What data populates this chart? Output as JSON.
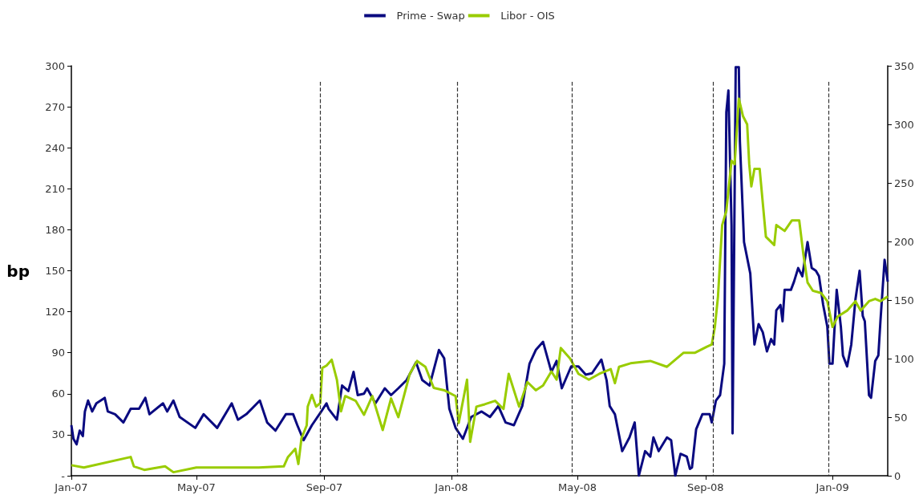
{
  "chart_data": {
    "type": "line",
    "ylabel": "bp",
    "legend": "top",
    "marker": "none",
    "grid": false,
    "xlim": [
      "2007-01-01",
      "2009-02-23"
    ],
    "xticks": [
      {
        "value": "2007-01-01",
        "label": "Jan-07"
      },
      {
        "value": "2007-05-01",
        "label": "May-07"
      },
      {
        "value": "2007-09-01",
        "label": "Sep-07"
      },
      {
        "value": "2008-01-01",
        "label": "Jan-08"
      },
      {
        "value": "2008-05-01",
        "label": "May-08"
      },
      {
        "value": "2008-09-01",
        "label": "Sep-08"
      },
      {
        "value": "2009-01-01",
        "label": "Jan-09"
      }
    ],
    "ylim": [
      0,
      300
    ],
    "yticks": [
      {
        "value": 0,
        "label": "-"
      },
      30,
      60,
      90,
      120,
      150,
      180,
      210,
      240,
      270,
      300
    ],
    "y2lim": [
      0,
      350
    ],
    "y2ticks": [
      0,
      50,
      100,
      150,
      200,
      250,
      300,
      350
    ],
    "ref_lines": [
      {
        "axis": "x",
        "value": "2007-08-28",
        "label": null,
        "color": "#333333",
        "line_style": "dashed"
      },
      {
        "axis": "x",
        "value": "2008-01-07",
        "label": null,
        "color": "#333333",
        "line_style": "dashed"
      },
      {
        "axis": "x",
        "value": "2008-04-26",
        "label": null,
        "color": "#333333",
        "line_style": "dashed"
      },
      {
        "axis": "x",
        "value": "2008-09-08",
        "label": null,
        "color": "#333333",
        "line_style": "dashed"
      },
      {
        "axis": "x",
        "value": "2008-12-28",
        "label": null,
        "color": "#333333",
        "line_style": "dashed"
      }
    ],
    "series": [
      {
        "name": "Prime - Swap",
        "color": "#0a0a80",
        "x": [
          "2007-01-01",
          "2007-01-03",
          "2007-01-06",
          "2007-01-09",
          "2007-01-12",
          "2007-01-14",
          "2007-01-17",
          "2007-01-21",
          "2007-01-25",
          "2007-02-02",
          "2007-02-05",
          "2007-02-12",
          "2007-02-20",
          "2007-02-27",
          "2007-03-07",
          "2007-03-13",
          "2007-03-17",
          "2007-03-30",
          "2007-04-03",
          "2007-04-09",
          "2007-04-15",
          "2007-04-30",
          "2007-05-08",
          "2007-05-21",
          "2007-06-04",
          "2007-06-10",
          "2007-06-18",
          "2007-07-01",
          "2007-07-08",
          "2007-07-16",
          "2007-07-26",
          "2007-08-02",
          "2007-08-06",
          "2007-08-12",
          "2007-08-20",
          "2007-08-29",
          "2007-09-03",
          "2007-09-05",
          "2007-09-13",
          "2007-09-18",
          "2007-09-24",
          "2007-09-29",
          "2007-10-03",
          "2007-10-09",
          "2007-10-12",
          "2007-10-20",
          "2007-10-29",
          "2007-11-04",
          "2007-11-11",
          "2007-11-19",
          "2007-11-28",
          "2007-12-04",
          "2007-12-11",
          "2007-12-20",
          "2007-12-25",
          "2007-12-30",
          "2008-01-05",
          "2008-01-12",
          "2008-01-20",
          "2008-01-30",
          "2008-02-07",
          "2008-02-15",
          "2008-02-22",
          "2008-03-01",
          "2008-03-09",
          "2008-03-16",
          "2008-03-22",
          "2008-03-29",
          "2008-04-06",
          "2008-04-11",
          "2008-04-16",
          "2008-04-25",
          "2008-05-02",
          "2008-05-09",
          "2008-05-15",
          "2008-05-24",
          "2008-05-29",
          "2008-06-01",
          "2008-06-06",
          "2008-06-13",
          "2008-06-20",
          "2008-06-25",
          "2008-06-29",
          "2008-07-05",
          "2008-07-10",
          "2008-07-13",
          "2008-07-18",
          "2008-07-26",
          "2008-07-30",
          "2008-08-03",
          "2008-08-08",
          "2008-08-14",
          "2008-08-17",
          "2008-08-19",
          "2008-08-23",
          "2008-08-29",
          "2008-09-05",
          "2008-09-07",
          "2008-09-11",
          "2008-09-15",
          "2008-09-19",
          "2008-09-21",
          "2008-09-23",
          "2008-09-26",
          "2008-09-27",
          "2008-09-30",
          "2008-10-03",
          "2008-10-04",
          "2008-10-08",
          "2008-10-14",
          "2008-10-18",
          "2008-10-22",
          "2008-10-26",
          "2008-10-30",
          "2008-11-03",
          "2008-11-06",
          "2008-11-08",
          "2008-11-12",
          "2008-11-14",
          "2008-11-16",
          "2008-11-22",
          "2008-11-25",
          "2008-11-29",
          "2008-12-03",
          "2008-12-08",
          "2008-12-12",
          "2008-12-16",
          "2008-12-19",
          "2008-12-23",
          "2008-12-27",
          "2008-12-29",
          "2009-01-01",
          "2009-01-05",
          "2009-01-09",
          "2009-01-11",
          "2009-01-15",
          "2009-01-19",
          "2009-01-23",
          "2009-01-27",
          "2009-01-30",
          "2009-02-01",
          "2009-02-05",
          "2009-02-07",
          "2009-02-11",
          "2009-02-14",
          "2009-02-16",
          "2009-02-20",
          "2009-02-23"
        ],
        "values": [
          37,
          27,
          23,
          33,
          29,
          47,
          55,
          47,
          53,
          57,
          47,
          45,
          39,
          49,
          49,
          57,
          45,
          53,
          47,
          55,
          43,
          35,
          45,
          35,
          53,
          41,
          45,
          55,
          39,
          33,
          45,
          45,
          37,
          26,
          37,
          47,
          53,
          49,
          41,
          66,
          62,
          76,
          59,
          60,
          64,
          53,
          64,
          59,
          64,
          70,
          83,
          70,
          66,
          92,
          86,
          49,
          35,
          27,
          43,
          47,
          43,
          51,
          39,
          37,
          51,
          82,
          92,
          98,
          76,
          84,
          64,
          80,
          80,
          74,
          75,
          85,
          70,
          51,
          45,
          18,
          28,
          39,
          0,
          18,
          14,
          28,
          18,
          28,
          26,
          0,
          16,
          14,
          5,
          6,
          34,
          45,
          45,
          39,
          55,
          59,
          82,
          266,
          282,
          183,
          31,
          299,
          299,
          245,
          171,
          148,
          96,
          111,
          105,
          91,
          100,
          96,
          121,
          125,
          113,
          136,
          136,
          142,
          152,
          146,
          171,
          152,
          150,
          146,
          125,
          109,
          82,
          82,
          136,
          109,
          88,
          80,
          96,
          129,
          150,
          117,
          113,
          59,
          57,
          84,
          88,
          113,
          158,
          142
        ]
      },
      {
        "name": "Libor - OIS",
        "color": "#99cc00",
        "axis": "y2",
        "x": [
          "2007-01-01",
          "2007-01-13",
          "2007-02-27",
          "2007-03-02",
          "2007-03-12",
          "2007-04-01",
          "2007-04-09",
          "2007-05-01",
          "2007-06-30",
          "2007-07-24",
          "2007-07-28",
          "2007-08-04",
          "2007-08-07",
          "2007-08-10",
          "2007-08-15",
          "2007-08-16",
          "2007-08-20",
          "2007-08-24",
          "2007-08-28",
          "2007-08-30",
          "2007-09-03",
          "2007-09-08",
          "2007-09-13",
          "2007-09-17",
          "2007-09-21",
          "2007-10-01",
          "2007-10-09",
          "2007-10-17",
          "2007-10-27",
          "2007-11-04",
          "2007-11-11",
          "2007-11-22",
          "2007-11-29",
          "2007-12-07",
          "2007-12-15",
          "2007-12-25",
          "2008-01-05",
          "2008-01-08",
          "2008-01-16",
          "2008-01-19",
          "2008-01-25",
          "2008-02-02",
          "2008-02-12",
          "2008-02-20",
          "2008-02-25",
          "2008-03-06",
          "2008-03-14",
          "2008-03-22",
          "2008-03-29",
          "2008-04-06",
          "2008-04-11",
          "2008-04-15",
          "2008-04-24",
          "2008-05-02",
          "2008-05-12",
          "2008-05-22",
          "2008-06-02",
          "2008-06-06",
          "2008-06-10",
          "2008-06-21",
          "2008-07-10",
          "2008-07-26",
          "2008-08-11",
          "2008-08-22",
          "2008-09-02",
          "2008-09-07",
          "2008-09-10",
          "2008-09-13",
          "2008-09-17",
          "2008-09-21",
          "2008-09-26",
          "2008-09-29",
          "2008-10-03",
          "2008-10-07",
          "2008-10-11",
          "2008-10-13",
          "2008-10-15",
          "2008-10-18",
          "2008-10-23",
          "2008-10-29",
          "2008-11-06",
          "2008-11-08",
          "2008-11-16",
          "2008-11-23",
          "2008-11-30",
          "2008-12-04",
          "2008-12-08",
          "2008-12-13",
          "2008-12-21",
          "2008-12-27",
          "2009-01-01",
          "2009-01-06",
          "2009-01-15",
          "2009-01-23",
          "2009-01-28",
          "2009-02-05",
          "2009-02-11",
          "2009-02-16",
          "2009-02-23"
        ],
        "values": [
          9,
          7,
          16,
          8,
          5,
          8,
          3,
          7,
          7,
          8,
          16,
          23,
          10,
          32,
          43,
          59,
          69,
          59,
          62,
          92,
          94,
          99,
          82,
          55,
          68,
          64,
          52,
          68,
          39,
          66,
          50,
          87,
          98,
          93,
          75,
          73,
          68,
          45,
          82,
          29,
          59,
          61,
          64,
          57,
          87,
          59,
          80,
          73,
          77,
          89,
          82,
          109,
          100,
          87,
          82,
          87,
          91,
          79,
          93,
          96,
          98,
          93,
          105,
          105,
          110,
          112,
          127,
          153,
          214,
          226,
          269,
          266,
          322,
          307,
          300,
          266,
          247,
          262,
          262,
          204,
          197,
          214,
          209,
          218,
          218,
          189,
          165,
          158,
          156,
          149,
          127,
          136,
          141,
          149,
          141,
          149,
          151,
          149,
          153
        ]
      }
    ]
  }
}
